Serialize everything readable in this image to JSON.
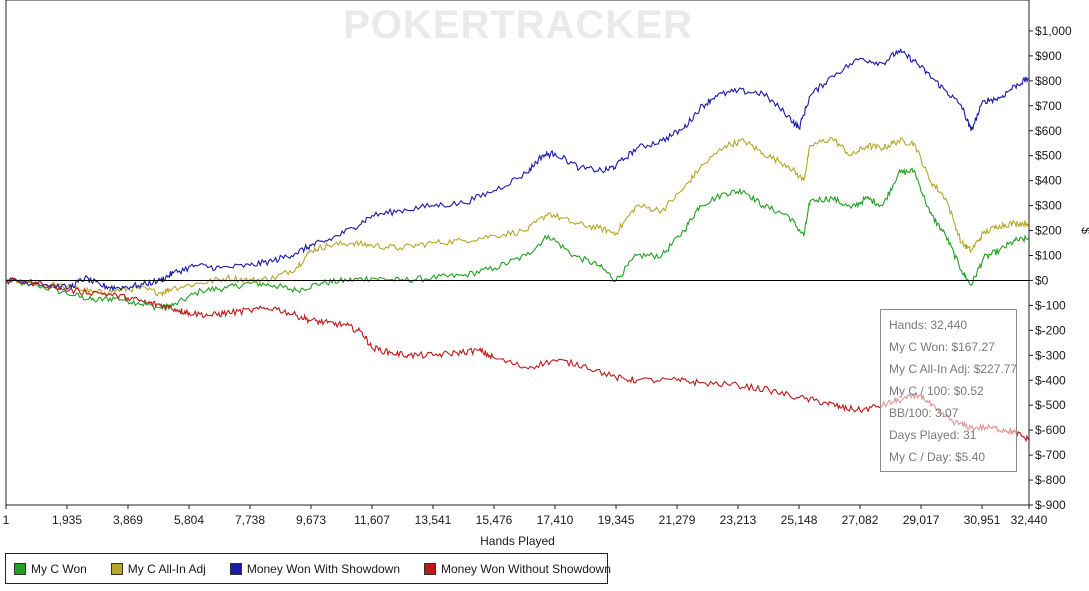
{
  "watermark": "POKERTRACKER",
  "chart_data": {
    "type": "line",
    "xlabel": "Hands Played",
    "ylabel": "$",
    "xlim": [
      1,
      32440
    ],
    "ylim": [
      -900,
      1100
    ],
    "x_ticks": [
      1,
      1935,
      3869,
      5804,
      7738,
      9673,
      11607,
      13541,
      15476,
      17410,
      19345,
      21279,
      23213,
      25148,
      27082,
      29017,
      30951,
      32440
    ],
    "x_tick_labels": [
      "1",
      "1,935",
      "3,869",
      "5,804",
      "7,738",
      "9,673",
      "11,607",
      "13,541",
      "15,476",
      "17,410",
      "19,345",
      "21,279",
      "23,213",
      "25,148",
      "27,082",
      "29,017",
      "30,951",
      "32,440"
    ],
    "y_ticks": [
      1000,
      900,
      800,
      700,
      600,
      500,
      400,
      300,
      200,
      100,
      0,
      -100,
      -200,
      -300,
      -400,
      -500,
      -600,
      -700,
      -800,
      -900
    ],
    "y_tick_labels": [
      "$1,000",
      "$900",
      "$800",
      "$700",
      "$600",
      "$500",
      "$400",
      "$300",
      "$200",
      "$100",
      "$0",
      "$-100",
      "$-200",
      "$-300",
      "$-400",
      "$-500",
      "$-600",
      "$-700",
      "$-800",
      "$-900"
    ],
    "zero_line": true,
    "grid": false,
    "legend_position": "bottom",
    "series": [
      {
        "name": "My C Won",
        "color": "#22a022",
        "x": [
          1,
          1000,
          2200,
          2800,
          3500,
          4200,
          4900,
          5300,
          6200,
          7000,
          7800,
          8500,
          9200,
          10000,
          10800,
          11600,
          12500,
          13500,
          14500,
          15500,
          16500,
          17200,
          18000,
          18800,
          19345,
          20000,
          20800,
          21500,
          22000,
          22800,
          23400,
          24000,
          24800,
          25300,
          25500,
          26200,
          26800,
          27300,
          27800,
          28300,
          28800,
          29300,
          29800,
          30300,
          30600,
          31000,
          31500,
          32000,
          32440
        ],
        "y": [
          0,
          -20,
          -60,
          -80,
          -70,
          -90,
          -110,
          -100,
          -40,
          -30,
          -10,
          -20,
          -40,
          -10,
          0,
          10,
          0,
          10,
          20,
          50,
          100,
          180,
          100,
          60,
          0,
          100,
          100,
          200,
          300,
          350,
          360,
          300,
          260,
          180,
          320,
          330,
          290,
          330,
          300,
          430,
          440,
          270,
          180,
          40,
          -20,
          90,
          120,
          160,
          167
        ]
      },
      {
        "name": "My C All-In Adj",
        "color": "#b5a82b",
        "x": [
          1,
          1000,
          2200,
          2800,
          3500,
          4200,
          4900,
          5300,
          6200,
          7000,
          7800,
          8500,
          9200,
          9673,
          10200,
          11000,
          11600,
          12500,
          13500,
          14500,
          15500,
          16500,
          17200,
          18000,
          18800,
          19345,
          20000,
          20800,
          21500,
          22000,
          22800,
          23400,
          24000,
          24800,
          25300,
          25500,
          26200,
          26800,
          27300,
          27800,
          28300,
          28800,
          29300,
          29800,
          30300,
          30600,
          31000,
          31500,
          32000,
          32440
        ],
        "y": [
          0,
          -10,
          -30,
          -50,
          -40,
          -30,
          -50,
          -30,
          -10,
          10,
          0,
          10,
          50,
          120,
          140,
          150,
          140,
          130,
          150,
          160,
          180,
          200,
          270,
          230,
          210,
          190,
          300,
          280,
          370,
          450,
          540,
          560,
          510,
          460,
          400,
          540,
          570,
          500,
          540,
          530,
          560,
          550,
          400,
          330,
          150,
          120,
          190,
          220,
          230,
          228
        ]
      },
      {
        "name": "Money Won With Showdown",
        "color": "#1a1aa8",
        "x": [
          1,
          1000,
          2000,
          2500,
          3000,
          3500,
          4200,
          4900,
          5300,
          6000,
          6800,
          7738,
          8500,
          9200,
          9673,
          10200,
          11000,
          11607,
          12500,
          13500,
          14500,
          15476,
          16500,
          17000,
          17410,
          18200,
          19000,
          19345,
          20000,
          20800,
          21500,
          22000,
          22500,
          23213,
          24000,
          24800,
          25148,
          25500,
          26200,
          27082,
          27800,
          28300,
          28800,
          29300,
          29800,
          30300,
          30600,
          31000,
          31500,
          32000,
          32440
        ],
        "y": [
          0,
          -10,
          -30,
          10,
          -20,
          -30,
          -20,
          0,
          30,
          60,
          50,
          60,
          80,
          110,
          140,
          160,
          210,
          260,
          280,
          300,
          310,
          360,
          430,
          500,
          510,
          450,
          440,
          460,
          530,
          560,
          610,
          690,
          740,
          760,
          750,
          660,
          610,
          740,
          820,
          890,
          870,
          920,
          880,
          820,
          760,
          700,
          600,
          720,
          730,
          780,
          810
        ]
      },
      {
        "name": "Money Won Without Showdown",
        "color": "#bb1a1a",
        "x": [
          1,
          1000,
          2000,
          3000,
          3869,
          4500,
          5000,
          5500,
          5804,
          6500,
          7000,
          7738,
          8500,
          9200,
          9673,
          10200,
          10800,
          11300,
          11607,
          12200,
          12800,
          13541,
          14300,
          15000,
          15476,
          16500,
          17410,
          18300,
          19345,
          20000,
          21279,
          22000,
          23213,
          24200,
          25148,
          26000,
          26500,
          27082,
          27800,
          28300,
          29017,
          29500,
          30100,
          30600,
          31200,
          31700,
          32000,
          32440
        ],
        "y": [
          0,
          -10,
          -40,
          -50,
          -70,
          -90,
          -100,
          -120,
          -130,
          -140,
          -130,
          -120,
          -110,
          -140,
          -160,
          -170,
          -180,
          -210,
          -270,
          -290,
          -300,
          -300,
          -290,
          -280,
          -310,
          -350,
          -320,
          -340,
          -390,
          -400,
          -400,
          -410,
          -420,
          -440,
          -470,
          -490,
          -510,
          -520,
          -500,
          -480,
          -460,
          -520,
          -570,
          -590,
          -590,
          -600,
          -610,
          -640
        ]
      }
    ]
  },
  "stats_box": {
    "lines": [
      "Hands: 32,440",
      "My C Won: $167.27",
      "My C All-In Adj: $227.77",
      "My C / 100: $0.52",
      "BB/100: 3.07",
      "Days Played: 31",
      "My C / Day: $5.40"
    ]
  },
  "legend": {
    "items": [
      {
        "label": "My C Won",
        "color": "#22a022"
      },
      {
        "label": "My C All-In Adj",
        "color": "#b5a82b"
      },
      {
        "label": "Money Won With Showdown",
        "color": "#1a1aa8"
      },
      {
        "label": "Money Won Without Showdown",
        "color": "#bb1a1a"
      }
    ]
  }
}
